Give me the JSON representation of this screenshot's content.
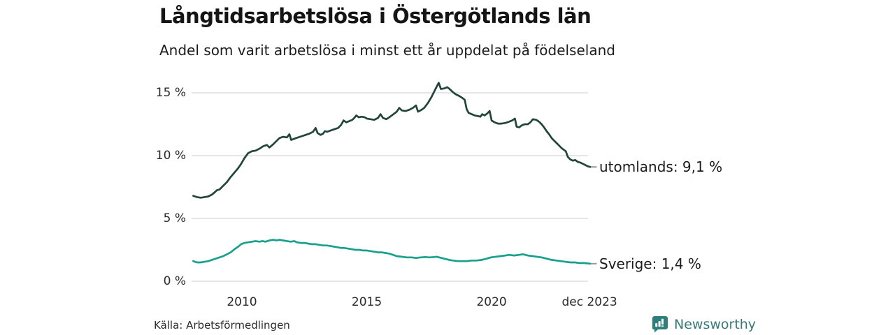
{
  "title": "Långtidsarbetslösa i Östergötlands län",
  "subtitle": "Andel som varit arbetslösa i minst ett år uppdelat på födelseland",
  "source": "Källa: Arbetsförmedlingen",
  "brand": {
    "name": "Newsworthy",
    "text_color": "#37787a",
    "icon_color": "#2e7f7c",
    "icon": "bar-chart-speech-bubble-icon"
  },
  "colors": {
    "gridline": "#d8d8d8",
    "tick_dash": "#999999",
    "utomlands_line": "#21453a",
    "sverige_line": "#18a08d"
  },
  "chart_data": {
    "type": "line",
    "title": "Långtidsarbetslösa i Östergötlands län",
    "subtitle": "Andel som varit arbetslösa i minst ett år uppdelat på födelseland",
    "unit": "%",
    "grid": "horizontal-only",
    "legend_position": "right-end-labels",
    "x_axis": {
      "range_years": [
        2008.0,
        2024.0
      ],
      "ticks": [
        {
          "label": "2010",
          "year": 2010
        },
        {
          "label": "2015",
          "year": 2015
        },
        {
          "label": "2020",
          "year": 2020
        },
        {
          "label": "dec 2023",
          "year": 2023.92
        }
      ]
    },
    "y_axis": {
      "range": [
        0,
        16.5
      ],
      "gridlines": [
        0,
        5,
        10,
        15
      ],
      "ticks": [
        {
          "label": "0 %",
          "value": 0
        },
        {
          "label": "5 %",
          "value": 5
        },
        {
          "label": "10 %",
          "value": 10
        },
        {
          "label": "15 %",
          "value": 15
        }
      ]
    },
    "series": [
      {
        "name": "utomlands",
        "end_label": "utomlands: 9,1 %",
        "final_value": 9.1,
        "color": "#21453a",
        "points": [
          [
            2008.05,
            6.8
          ],
          [
            2008.2,
            6.7
          ],
          [
            2008.35,
            6.65
          ],
          [
            2008.5,
            6.7
          ],
          [
            2008.65,
            6.75
          ],
          [
            2008.8,
            6.9
          ],
          [
            2008.92,
            7.1
          ],
          [
            2009.0,
            7.25
          ],
          [
            2009.1,
            7.3
          ],
          [
            2009.25,
            7.6
          ],
          [
            2009.4,
            7.9
          ],
          [
            2009.55,
            8.3
          ],
          [
            2009.7,
            8.65
          ],
          [
            2009.85,
            9.0
          ],
          [
            2009.97,
            9.35
          ],
          [
            2010.1,
            9.8
          ],
          [
            2010.25,
            10.2
          ],
          [
            2010.4,
            10.35
          ],
          [
            2010.55,
            10.4
          ],
          [
            2010.7,
            10.55
          ],
          [
            2010.85,
            10.75
          ],
          [
            2011.0,
            10.85
          ],
          [
            2011.1,
            10.65
          ],
          [
            2011.25,
            10.9
          ],
          [
            2011.4,
            11.2
          ],
          [
            2011.5,
            11.4
          ],
          [
            2011.65,
            11.5
          ],
          [
            2011.8,
            11.45
          ],
          [
            2011.9,
            11.7
          ],
          [
            2011.97,
            11.25
          ],
          [
            2012.1,
            11.35
          ],
          [
            2012.25,
            11.45
          ],
          [
            2012.4,
            11.55
          ],
          [
            2012.55,
            11.65
          ],
          [
            2012.7,
            11.75
          ],
          [
            2012.85,
            11.9
          ],
          [
            2012.95,
            12.2
          ],
          [
            2013.03,
            11.8
          ],
          [
            2013.15,
            11.65
          ],
          [
            2013.25,
            11.75
          ],
          [
            2013.32,
            11.95
          ],
          [
            2013.42,
            11.9
          ],
          [
            2013.55,
            12.0
          ],
          [
            2013.7,
            12.1
          ],
          [
            2013.85,
            12.2
          ],
          [
            2013.97,
            12.45
          ],
          [
            2014.07,
            12.8
          ],
          [
            2014.18,
            12.65
          ],
          [
            2014.3,
            12.75
          ],
          [
            2014.42,
            12.85
          ],
          [
            2014.5,
            13.0
          ],
          [
            2014.58,
            13.2
          ],
          [
            2014.68,
            13.05
          ],
          [
            2014.8,
            13.1
          ],
          [
            2014.92,
            13.05
          ],
          [
            2015.0,
            12.95
          ],
          [
            2015.15,
            12.9
          ],
          [
            2015.3,
            12.85
          ],
          [
            2015.45,
            13.0
          ],
          [
            2015.55,
            13.3
          ],
          [
            2015.65,
            13.0
          ],
          [
            2015.78,
            12.9
          ],
          [
            2015.9,
            13.05
          ],
          [
            2016.0,
            13.2
          ],
          [
            2016.1,
            13.35
          ],
          [
            2016.2,
            13.5
          ],
          [
            2016.3,
            13.8
          ],
          [
            2016.4,
            13.6
          ],
          [
            2016.55,
            13.55
          ],
          [
            2016.7,
            13.65
          ],
          [
            2016.85,
            13.8
          ],
          [
            2016.97,
            14.0
          ],
          [
            2017.05,
            13.5
          ],
          [
            2017.15,
            13.6
          ],
          [
            2017.3,
            13.8
          ],
          [
            2017.45,
            14.2
          ],
          [
            2017.6,
            14.7
          ],
          [
            2017.7,
            15.1
          ],
          [
            2017.8,
            15.5
          ],
          [
            2017.88,
            15.8
          ],
          [
            2017.97,
            15.3
          ],
          [
            2018.1,
            15.35
          ],
          [
            2018.22,
            15.45
          ],
          [
            2018.32,
            15.3
          ],
          [
            2018.45,
            15.05
          ],
          [
            2018.55,
            14.9
          ],
          [
            2018.7,
            14.75
          ],
          [
            2018.82,
            14.6
          ],
          [
            2018.92,
            14.45
          ],
          [
            2019.0,
            13.7
          ],
          [
            2019.08,
            13.4
          ],
          [
            2019.2,
            13.3
          ],
          [
            2019.32,
            13.2
          ],
          [
            2019.45,
            13.15
          ],
          [
            2019.55,
            13.1
          ],
          [
            2019.62,
            13.3
          ],
          [
            2019.72,
            13.2
          ],
          [
            2019.82,
            13.35
          ],
          [
            2019.92,
            13.55
          ],
          [
            2020.0,
            12.8
          ],
          [
            2020.12,
            12.65
          ],
          [
            2020.25,
            12.55
          ],
          [
            2020.4,
            12.55
          ],
          [
            2020.55,
            12.6
          ],
          [
            2020.7,
            12.7
          ],
          [
            2020.82,
            12.8
          ],
          [
            2020.93,
            12.95
          ],
          [
            2021.0,
            12.3
          ],
          [
            2021.1,
            12.25
          ],
          [
            2021.2,
            12.4
          ],
          [
            2021.32,
            12.5
          ],
          [
            2021.45,
            12.5
          ],
          [
            2021.55,
            12.65
          ],
          [
            2021.65,
            12.9
          ],
          [
            2021.78,
            12.85
          ],
          [
            2021.9,
            12.7
          ],
          [
            2022.0,
            12.5
          ],
          [
            2022.1,
            12.25
          ],
          [
            2022.2,
            11.95
          ],
          [
            2022.3,
            11.7
          ],
          [
            2022.4,
            11.4
          ],
          [
            2022.5,
            11.2
          ],
          [
            2022.6,
            11.0
          ],
          [
            2022.7,
            10.8
          ],
          [
            2022.8,
            10.6
          ],
          [
            2022.9,
            10.45
          ],
          [
            2022.97,
            10.35
          ],
          [
            2023.05,
            9.9
          ],
          [
            2023.15,
            9.7
          ],
          [
            2023.25,
            9.6
          ],
          [
            2023.35,
            9.65
          ],
          [
            2023.45,
            9.5
          ],
          [
            2023.55,
            9.45
          ],
          [
            2023.65,
            9.35
          ],
          [
            2023.75,
            9.25
          ],
          [
            2023.85,
            9.15
          ],
          [
            2023.95,
            9.1
          ]
        ]
      },
      {
        "name": "Sverige",
        "end_label": "Sverige: 1,4 %",
        "final_value": 1.4,
        "color": "#18a08d",
        "points": [
          [
            2008.05,
            1.6
          ],
          [
            2008.2,
            1.5
          ],
          [
            2008.35,
            1.5
          ],
          [
            2008.5,
            1.55
          ],
          [
            2008.65,
            1.6
          ],
          [
            2008.8,
            1.7
          ],
          [
            2008.95,
            1.8
          ],
          [
            2009.1,
            1.9
          ],
          [
            2009.25,
            2.0
          ],
          [
            2009.4,
            2.15
          ],
          [
            2009.55,
            2.3
          ],
          [
            2009.7,
            2.55
          ],
          [
            2009.85,
            2.75
          ],
          [
            2009.97,
            2.95
          ],
          [
            2010.1,
            3.05
          ],
          [
            2010.25,
            3.1
          ],
          [
            2010.4,
            3.15
          ],
          [
            2010.55,
            3.2
          ],
          [
            2010.7,
            3.15
          ],
          [
            2010.82,
            3.2
          ],
          [
            2010.95,
            3.15
          ],
          [
            2011.1,
            3.25
          ],
          [
            2011.25,
            3.3
          ],
          [
            2011.4,
            3.25
          ],
          [
            2011.5,
            3.3
          ],
          [
            2011.65,
            3.25
          ],
          [
            2011.8,
            3.2
          ],
          [
            2011.95,
            3.15
          ],
          [
            2012.1,
            3.2
          ],
          [
            2012.2,
            3.1
          ],
          [
            2012.35,
            3.05
          ],
          [
            2012.5,
            3.05
          ],
          [
            2012.65,
            3.0
          ],
          [
            2012.8,
            2.95
          ],
          [
            2012.95,
            2.95
          ],
          [
            2013.1,
            2.9
          ],
          [
            2013.25,
            2.85
          ],
          [
            2013.4,
            2.85
          ],
          [
            2013.55,
            2.8
          ],
          [
            2013.7,
            2.75
          ],
          [
            2013.85,
            2.7
          ],
          [
            2013.97,
            2.65
          ],
          [
            2014.1,
            2.65
          ],
          [
            2014.25,
            2.6
          ],
          [
            2014.4,
            2.55
          ],
          [
            2014.55,
            2.5
          ],
          [
            2014.7,
            2.5
          ],
          [
            2014.85,
            2.45
          ],
          [
            2015.0,
            2.45
          ],
          [
            2015.15,
            2.4
          ],
          [
            2015.3,
            2.35
          ],
          [
            2015.45,
            2.3
          ],
          [
            2015.6,
            2.3
          ],
          [
            2015.75,
            2.25
          ],
          [
            2015.9,
            2.2
          ],
          [
            2016.05,
            2.1
          ],
          [
            2016.2,
            2.0
          ],
          [
            2016.4,
            1.95
          ],
          [
            2016.6,
            1.9
          ],
          [
            2016.8,
            1.9
          ],
          [
            2016.97,
            1.85
          ],
          [
            2017.15,
            1.9
          ],
          [
            2017.35,
            1.93
          ],
          [
            2017.5,
            1.9
          ],
          [
            2017.7,
            1.93
          ],
          [
            2017.8,
            1.95
          ],
          [
            2017.9,
            1.9
          ],
          [
            2018.1,
            1.8
          ],
          [
            2018.3,
            1.7
          ],
          [
            2018.45,
            1.65
          ],
          [
            2018.65,
            1.6
          ],
          [
            2018.85,
            1.6
          ],
          [
            2019.0,
            1.6
          ],
          [
            2019.2,
            1.65
          ],
          [
            2019.4,
            1.65
          ],
          [
            2019.6,
            1.7
          ],
          [
            2019.8,
            1.8
          ],
          [
            2019.97,
            1.9
          ],
          [
            2020.15,
            1.95
          ],
          [
            2020.35,
            2.0
          ],
          [
            2020.55,
            2.05
          ],
          [
            2020.7,
            2.1
          ],
          [
            2020.9,
            2.05
          ],
          [
            2021.1,
            2.1
          ],
          [
            2021.25,
            2.15
          ],
          [
            2021.45,
            2.05
          ],
          [
            2021.65,
            2.0
          ],
          [
            2021.82,
            1.95
          ],
          [
            2022.0,
            1.9
          ],
          [
            2022.2,
            1.8
          ],
          [
            2022.4,
            1.7
          ],
          [
            2022.6,
            1.65
          ],
          [
            2022.77,
            1.6
          ],
          [
            2022.95,
            1.55
          ],
          [
            2023.15,
            1.5
          ],
          [
            2023.35,
            1.5
          ],
          [
            2023.5,
            1.45
          ],
          [
            2023.7,
            1.45
          ],
          [
            2023.85,
            1.42
          ],
          [
            2023.95,
            1.4
          ]
        ]
      }
    ]
  }
}
